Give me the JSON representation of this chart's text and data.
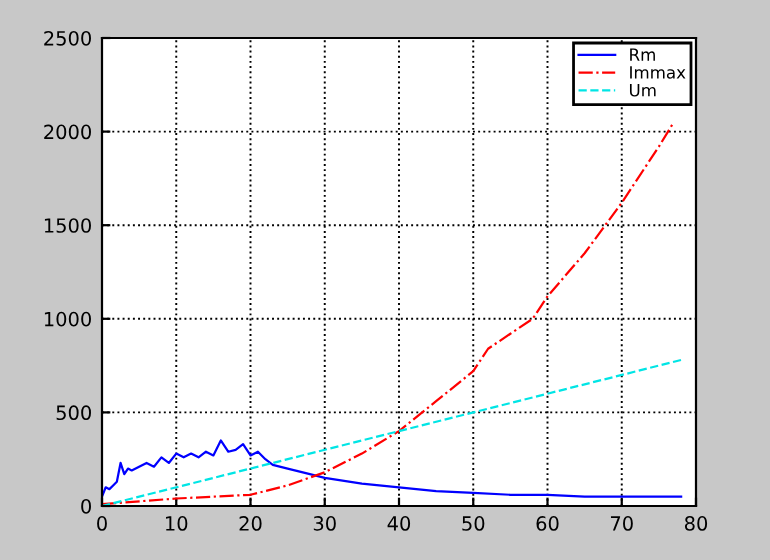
{
  "chart_data": {
    "type": "line",
    "xlim": [
      0,
      80
    ],
    "ylim": [
      0,
      2500
    ],
    "xticks": [
      0,
      10,
      20,
      30,
      40,
      50,
      60,
      70,
      80
    ],
    "yticks": [
      0,
      500,
      1000,
      1500,
      2000,
      2500
    ],
    "grid": true,
    "legend": "top right",
    "marker": "none",
    "series": [
      {
        "name": "Rm",
        "color": "#0000ff",
        "line_style": "solid",
        "x": [
          0,
          0.5,
          1,
          1.5,
          2,
          2.5,
          3,
          3.5,
          4,
          5,
          6,
          7,
          8,
          9,
          10,
          11,
          12,
          13,
          14,
          15,
          16,
          17,
          18,
          19,
          20,
          21,
          22,
          23,
          25,
          28,
          30,
          35,
          40,
          45,
          50,
          55,
          60,
          65,
          70,
          78
        ],
        "values": [
          50,
          100,
          90,
          110,
          130,
          230,
          170,
          200,
          190,
          210,
          230,
          210,
          260,
          230,
          280,
          260,
          280,
          260,
          290,
          270,
          350,
          290,
          300,
          330,
          270,
          290,
          250,
          220,
          200,
          170,
          150,
          120,
          100,
          80,
          70,
          60,
          60,
          50,
          50,
          50
        ]
      },
      {
        "name": "Immax",
        "color": "#ff0000",
        "line_style": "dashdot",
        "x": [
          0,
          10,
          20,
          25,
          30,
          35,
          40,
          45,
          50,
          52,
          55,
          58,
          60,
          65,
          70,
          75,
          77
        ],
        "values": [
          10,
          40,
          60,
          110,
          180,
          280,
          400,
          560,
          720,
          840,
          920,
          1000,
          1120,
          1350,
          1620,
          1920,
          2050
        ]
      },
      {
        "name": "Um",
        "color": "#00e5e5",
        "line_style": "dashed",
        "x": [
          0,
          78
        ],
        "values": [
          0,
          780
        ]
      }
    ]
  }
}
